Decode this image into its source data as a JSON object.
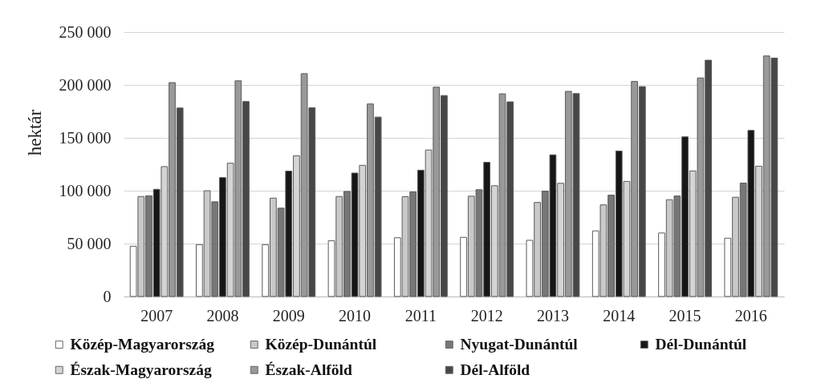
{
  "chart_data": {
    "type": "bar",
    "ylabel": "hektár",
    "categories": [
      "2007",
      "2008",
      "2009",
      "2010",
      "2011",
      "2012",
      "2013",
      "2014",
      "2015",
      "2016"
    ],
    "series": [
      {
        "name": "Közép-Magyarország",
        "color": "#ffffff",
        "values": [
          47500,
          49000,
          49000,
          52700,
          55500,
          55900,
          53100,
          62000,
          60000,
          55100
        ]
      },
      {
        "name": "Közép-Dunántúl",
        "color": "#c9c9c9",
        "values": [
          94500,
          100000,
          93000,
          94500,
          94300,
          94800,
          88900,
          86600,
          91500,
          93800
        ]
      },
      {
        "name": "Nyugat-Dunántúl",
        "color": "#777777",
        "values": [
          95200,
          89500,
          83500,
          99300,
          98800,
          100900,
          99600,
          95800,
          95000,
          107200
        ]
      },
      {
        "name": "Dél-Dunántúl",
        "color": "#161616",
        "values": [
          101300,
          112400,
          118500,
          116700,
          119400,
          126800,
          133900,
          137500,
          150900,
          157000
        ]
      },
      {
        "name": "Észak-Magyarország",
        "color": "#d4d4d4",
        "values": [
          122800,
          126000,
          133000,
          124000,
          138500,
          104700,
          107000,
          108800,
          118700,
          123200
        ]
      },
      {
        "name": "Észak-Alföld",
        "color": "#999999",
        "values": [
          202200,
          203900,
          210700,
          182000,
          197900,
          191600,
          193900,
          203300,
          206600,
          227400
        ]
      },
      {
        "name": "Dél-Alföld",
        "color": "#474747",
        "values": [
          178200,
          184300,
          178400,
          169600,
          190000,
          184000,
          191800,
          198400,
          223400,
          225400
        ]
      }
    ],
    "ylim": [
      0,
      250000
    ],
    "yticks": [
      0,
      {
        "value": 50000,
        "label": "50 000"
      },
      {
        "value": 100000,
        "label": "100 000"
      },
      {
        "value": 150000,
        "label": "150 000"
      },
      {
        "value": 200000,
        "label": "200 000"
      },
      {
        "value": 250000,
        "label": "250 000"
      }
    ],
    "grid": "y",
    "legend": "bottom"
  }
}
